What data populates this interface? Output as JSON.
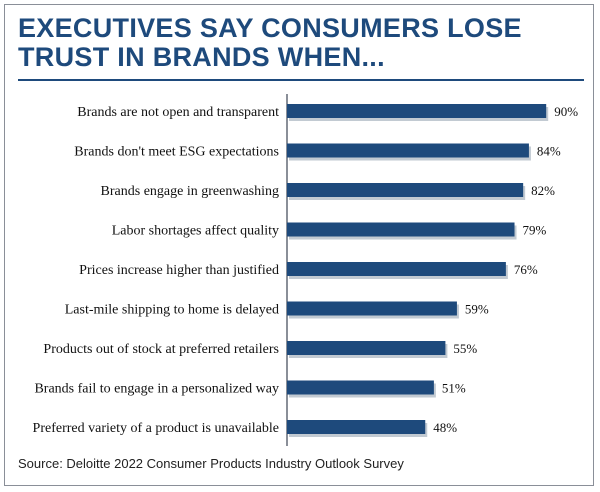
{
  "title_lines": [
    "EXECUTIVES SAY CONSUMERS LOSE",
    "TRUST IN BRANDS WHEN..."
  ],
  "source": "Source: Deloitte 2022 Consumer Products Industry Outlook Survey",
  "colors": {
    "title": "#1e4a7c",
    "bar": "#1e4a7c",
    "bar_shadow": "#9aa6b4",
    "axis": "#8a8f98"
  },
  "chart_data": {
    "type": "bar",
    "orientation": "horizontal",
    "title": "EXECUTIVES SAY CONSUMERS LOSE TRUST IN BRANDS WHEN...",
    "categories": [
      "Brands are not open and transparent",
      "Brands don't meet ESG expectations",
      "Brands engage in greenwashing",
      "Labor shortages affect quality",
      "Prices increase higher than justified",
      "Last-mile shipping to home is delayed",
      "Products out of stock at preferred retailers",
      "Brands fail to engage in a personalized way",
      "Preferred variety of a product is unavailable"
    ],
    "values": [
      90,
      84,
      82,
      79,
      76,
      59,
      55,
      51,
      48
    ],
    "value_labels": [
      "90%",
      "84%",
      "82%",
      "79%",
      "76%",
      "59%",
      "55%",
      "51%",
      "48%"
    ],
    "unit": "%",
    "xlim": [
      0,
      100
    ],
    "grid": false,
    "legend": "none"
  }
}
